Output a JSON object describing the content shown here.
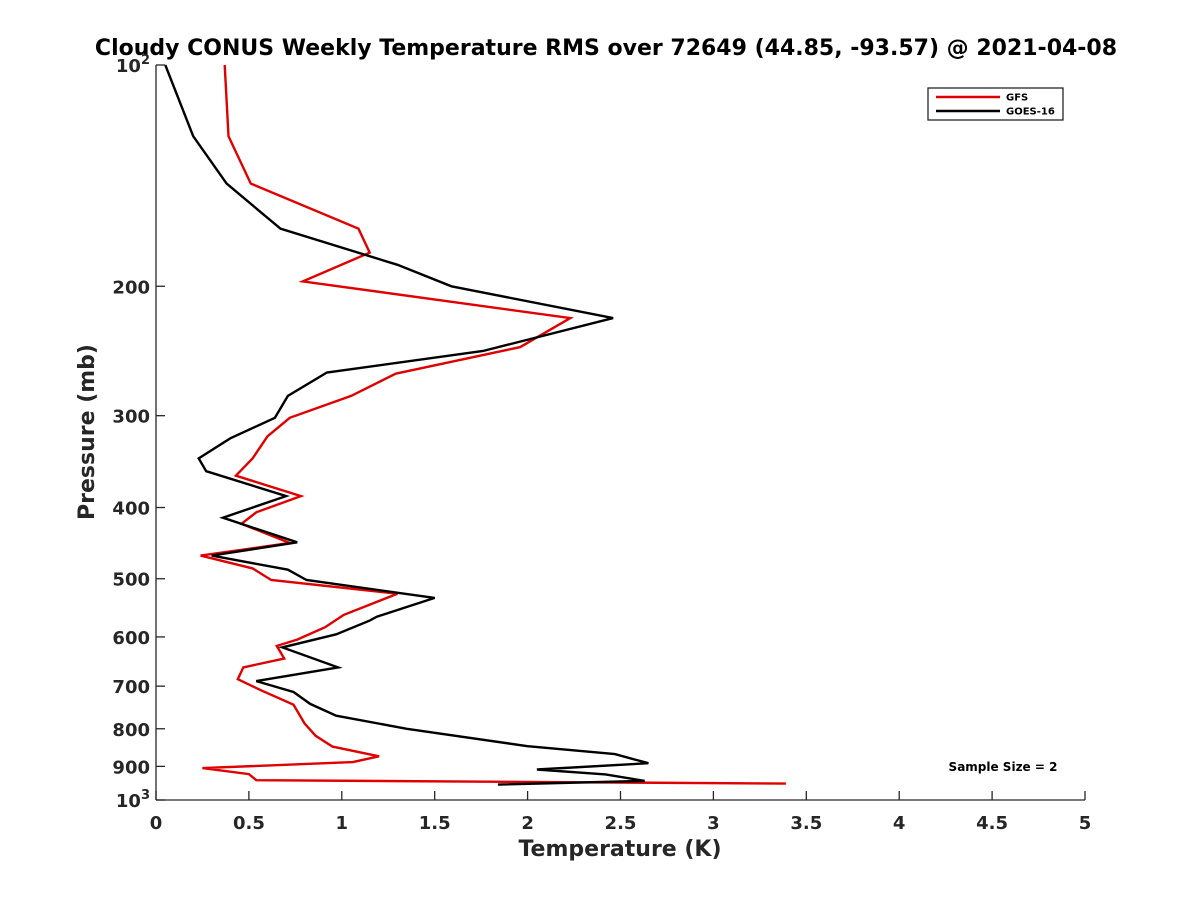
{
  "chart_data": {
    "type": "line",
    "title": "Cloudy CONUS Weekly Temperature RMS over 72649 (44.85, -93.57) @ 2021-04-08",
    "xlabel": "Temperature (K)",
    "ylabel": "Pressure (mb)",
    "xlim": [
      0,
      5
    ],
    "ylim": [
      1000,
      100
    ],
    "yscale": "log",
    "y_reversed": true,
    "grid": false,
    "legend_position": "top-right",
    "x_ticks": [
      "0",
      "0.5",
      "1",
      "1.5",
      "2",
      "2.5",
      "3",
      "3.5",
      "4",
      "4.5",
      "5"
    ],
    "y_ticks": [
      {
        "value": 100,
        "base": "10",
        "exp": "2"
      },
      {
        "value": 200,
        "label": "200"
      },
      {
        "value": 300,
        "label": "300"
      },
      {
        "value": 400,
        "label": "400"
      },
      {
        "value": 500,
        "label": "500"
      },
      {
        "value": 600,
        "label": "600"
      },
      {
        "value": 700,
        "label": "700"
      },
      {
        "value": 800,
        "label": "800"
      },
      {
        "value": 900,
        "label": "900"
      },
      {
        "value": 1000,
        "base": "10",
        "exp": "3"
      }
    ],
    "annotation": "Sample Size = 2",
    "series": [
      {
        "name": "GFS",
        "color": "#e00000",
        "points": [
          [
            0.37,
            100
          ],
          [
            0.39,
            125
          ],
          [
            0.51,
            145
          ],
          [
            1.09,
            167
          ],
          [
            1.15,
            180
          ],
          [
            0.79,
            197
          ],
          [
            2.23,
            221
          ],
          [
            1.96,
            242
          ],
          [
            1.29,
            263
          ],
          [
            1.05,
            282
          ],
          [
            0.72,
            302
          ],
          [
            0.6,
            320
          ],
          [
            0.52,
            343
          ],
          [
            0.43,
            362
          ],
          [
            0.78,
            386
          ],
          [
            0.54,
            406
          ],
          [
            0.46,
            421
          ],
          [
            0.72,
            447
          ],
          [
            0.24,
            465
          ],
          [
            0.52,
            484
          ],
          [
            0.62,
            502
          ],
          [
            1.3,
            524
          ],
          [
            1.01,
            560
          ],
          [
            0.91,
            582
          ],
          [
            0.76,
            605
          ],
          [
            0.65,
            617
          ],
          [
            0.69,
            642
          ],
          [
            0.47,
            660
          ],
          [
            0.44,
            685
          ],
          [
            0.57,
            710
          ],
          [
            0.74,
            742
          ],
          [
            0.8,
            787
          ],
          [
            0.86,
            818
          ],
          [
            0.95,
            846
          ],
          [
            1.2,
            872
          ],
          [
            1.06,
            888
          ],
          [
            0.25,
            905
          ],
          [
            0.5,
            922
          ],
          [
            0.54,
            940
          ],
          [
            3.39,
            950
          ]
        ]
      },
      {
        "name": "GOES-16",
        "color": "#000000",
        "points": [
          [
            0.05,
            100
          ],
          [
            0.2,
            125
          ],
          [
            0.38,
            145
          ],
          [
            0.67,
            167
          ],
          [
            1.3,
            187
          ],
          [
            1.59,
            200
          ],
          [
            2.46,
            221
          ],
          [
            1.76,
            245
          ],
          [
            0.92,
            262
          ],
          [
            0.71,
            282
          ],
          [
            0.64,
            302
          ],
          [
            0.4,
            322
          ],
          [
            0.23,
            343
          ],
          [
            0.27,
            357
          ],
          [
            0.7,
            386
          ],
          [
            0.36,
            413
          ],
          [
            0.76,
            446
          ],
          [
            0.3,
            465
          ],
          [
            0.71,
            486
          ],
          [
            0.81,
            502
          ],
          [
            1.5,
            531
          ],
          [
            1.19,
            563
          ],
          [
            1.15,
            570
          ],
          [
            0.97,
            595
          ],
          [
            0.68,
            620
          ],
          [
            0.98,
            660
          ],
          [
            0.54,
            689
          ],
          [
            0.74,
            713
          ],
          [
            0.83,
            740
          ],
          [
            0.97,
            768
          ],
          [
            1.35,
            800
          ],
          [
            2.0,
            845
          ],
          [
            2.47,
            866
          ],
          [
            2.65,
            891
          ],
          [
            2.05,
            909
          ],
          [
            2.42,
            923
          ],
          [
            2.63,
            942
          ],
          [
            1.84,
            953
          ]
        ]
      }
    ]
  }
}
